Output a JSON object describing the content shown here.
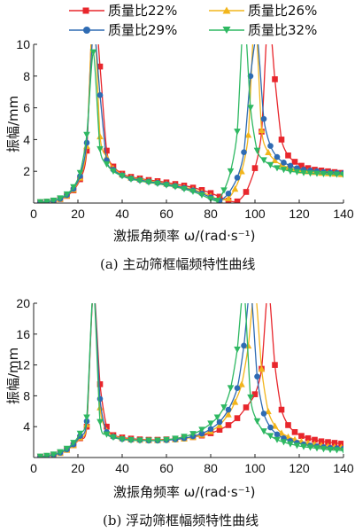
{
  "legend": {
    "title_x": "激振角频率 ω/(rad·s⁻¹)"
  },
  "chart_data": [
    {
      "type": "line",
      "caption": "(a)  主动筛框幅频特性曲线",
      "xlabel": "激振角频率 ω/(rad·s⁻¹)",
      "ylabel": "振幅/mm",
      "xlim": [
        0,
        140
      ],
      "ylim": [
        0,
        10
      ],
      "xticks": [
        "0",
        "20",
        "40",
        "60",
        "80",
        "100",
        "120",
        "140"
      ],
      "yticks": [
        "2",
        "4",
        "6",
        "8",
        "10"
      ],
      "legend_position": "top",
      "series": [
        {
          "name": "质量比22%",
          "color": "#e8262c",
          "marker": "square",
          "x": [
            3,
            6,
            9,
            12,
            15,
            18,
            21,
            24,
            27,
            30,
            33,
            36,
            40,
            44,
            48,
            52,
            56,
            60,
            64,
            68,
            72,
            76,
            80,
            84,
            88,
            92,
            96,
            100,
            103,
            106,
            109,
            112,
            115,
            118,
            121,
            124,
            127,
            130,
            133,
            136,
            139
          ],
          "y": [
            0.05,
            0.08,
            0.14,
            0.25,
            0.45,
            0.8,
            1.5,
            3.3,
            13.0,
            8.6,
            3.3,
            2.3,
            1.85,
            1.65,
            1.55,
            1.45,
            1.38,
            1.3,
            1.2,
            1.1,
            0.97,
            0.82,
            0.63,
            0.4,
            0.15,
            0.1,
            0.7,
            2.2,
            4.5,
            12.0,
            7.8,
            4.0,
            3.0,
            2.6,
            2.35,
            2.2,
            2.1,
            2.05,
            2.0,
            1.95,
            1.9
          ]
        },
        {
          "name": "质量比26%",
          "color": "#f2b51b",
          "marker": "triangle-up",
          "x": [
            3,
            6,
            9,
            12,
            15,
            18,
            21,
            24,
            27,
            30,
            33,
            36,
            40,
            44,
            48,
            52,
            56,
            60,
            64,
            68,
            72,
            76,
            80,
            84,
            88,
            91,
            94,
            97,
            100,
            103,
            106,
            109,
            112,
            115,
            118,
            121,
            124,
            127,
            130,
            133,
            136,
            139
          ],
          "y": [
            0.05,
            0.08,
            0.14,
            0.26,
            0.47,
            0.85,
            1.6,
            3.6,
            12.5,
            4.2,
            2.9,
            2.2,
            1.8,
            1.6,
            1.5,
            1.4,
            1.32,
            1.22,
            1.12,
            1.0,
            0.86,
            0.68,
            0.45,
            0.2,
            0.3,
            0.9,
            2.0,
            4.3,
            12.0,
            4.6,
            3.2,
            2.7,
            2.4,
            2.25,
            2.15,
            2.05,
            2.0,
            1.95,
            1.9,
            1.88,
            1.85,
            1.82
          ]
        },
        {
          "name": "质量比29%",
          "color": "#2e6bb3",
          "marker": "circle",
          "x": [
            3,
            6,
            9,
            12,
            15,
            18,
            21,
            24,
            27,
            30,
            33,
            36,
            40,
            44,
            48,
            52,
            56,
            60,
            64,
            68,
            72,
            76,
            80,
            84,
            88,
            92,
            95,
            98,
            101,
            104,
            107,
            110,
            113,
            116,
            119,
            122,
            125,
            128,
            131,
            134,
            137,
            140
          ],
          "y": [
            0.05,
            0.08,
            0.15,
            0.27,
            0.5,
            0.9,
            1.7,
            3.8,
            11.0,
            6.8,
            2.7,
            2.1,
            1.75,
            1.55,
            1.45,
            1.35,
            1.27,
            1.18,
            1.08,
            0.95,
            0.8,
            0.6,
            0.35,
            0.15,
            0.6,
            1.6,
            3.2,
            8.0,
            10.5,
            5.3,
            3.6,
            2.9,
            2.55,
            2.35,
            2.2,
            2.1,
            2.05,
            2.0,
            1.95,
            1.92,
            1.9,
            1.88
          ]
        },
        {
          "name": "质量比32%",
          "color": "#2eb862",
          "marker": "triangle-down",
          "x": [
            3,
            6,
            9,
            12,
            15,
            18,
            21,
            24,
            27,
            30,
            33,
            36,
            40,
            44,
            48,
            52,
            56,
            60,
            64,
            68,
            72,
            76,
            80,
            83,
            86,
            89,
            92,
            95,
            98,
            101,
            104,
            107,
            110,
            113,
            116,
            119,
            122,
            125,
            128,
            131,
            134,
            137,
            140
          ],
          "y": [
            0.06,
            0.09,
            0.16,
            0.3,
            0.55,
            1.0,
            1.9,
            4.3,
            9.5,
            3.4,
            2.45,
            2.0,
            1.7,
            1.5,
            1.4,
            1.3,
            1.22,
            1.12,
            1.02,
            0.88,
            0.72,
            0.5,
            0.25,
            0.15,
            0.8,
            2.0,
            4.5,
            12.0,
            6.0,
            3.3,
            2.7,
            2.4,
            2.2,
            2.1,
            2.0,
            1.95,
            1.9,
            1.87,
            1.85,
            1.83,
            1.82,
            1.8,
            1.78
          ]
        }
      ]
    },
    {
      "type": "line",
      "caption": "(b)  浮动筛框幅频特性曲线",
      "xlabel": "激振角频率 ω/(rad·s⁻¹)",
      "ylabel": "振幅/mm",
      "xlim": [
        0,
        140
      ],
      "ylim": [
        0,
        20
      ],
      "xticks": [
        "0",
        "20",
        "40",
        "60",
        "80",
        "100",
        "120",
        "140"
      ],
      "yticks": [
        "4",
        "8",
        "12",
        "16",
        "20"
      ],
      "series": [
        {
          "name": "质量比22%",
          "color": "#e8262c",
          "marker": "square",
          "x": [
            3,
            6,
            9,
            12,
            15,
            18,
            21,
            24,
            27,
            30,
            33,
            36,
            40,
            44,
            48,
            52,
            56,
            60,
            64,
            68,
            72,
            76,
            80,
            84,
            88,
            92,
            96,
            100,
            103,
            106,
            109,
            112,
            115,
            118,
            121,
            124,
            127,
            130,
            133,
            136,
            139
          ],
          "y": [
            0.1,
            0.2,
            0.35,
            0.6,
            1.0,
            1.6,
            2.5,
            4.0,
            22.0,
            9.5,
            4.0,
            2.9,
            2.6,
            2.45,
            2.35,
            2.3,
            2.3,
            2.35,
            2.4,
            2.5,
            2.65,
            2.85,
            3.15,
            3.6,
            4.2,
            5.1,
            6.5,
            8.2,
            11.5,
            22.0,
            12.0,
            6.2,
            4.2,
            3.3,
            2.8,
            2.5,
            2.3,
            2.1,
            2.0,
            1.9,
            1.8
          ]
        },
        {
          "name": "质量比26%",
          "color": "#f2b51b",
          "marker": "triangle-up",
          "x": [
            3,
            6,
            9,
            12,
            15,
            18,
            21,
            24,
            27,
            30,
            33,
            36,
            40,
            44,
            48,
            52,
            56,
            60,
            64,
            68,
            72,
            76,
            80,
            84,
            88,
            91,
            94,
            97,
            100,
            103,
            106,
            109,
            112,
            115,
            118,
            121,
            124,
            127,
            130,
            133,
            136,
            139
          ],
          "y": [
            0.1,
            0.2,
            0.35,
            0.6,
            1.0,
            1.6,
            2.6,
            4.3,
            22.0,
            6.5,
            3.5,
            2.8,
            2.5,
            2.35,
            2.3,
            2.25,
            2.25,
            2.3,
            2.35,
            2.45,
            2.65,
            2.95,
            3.4,
            4.2,
            5.6,
            7.2,
            9.5,
            14.5,
            22.0,
            11.5,
            6.0,
            4.1,
            3.2,
            2.7,
            2.35,
            2.1,
            1.9,
            1.75,
            1.6,
            1.5,
            1.4,
            1.35
          ]
        },
        {
          "name": "质量比29%",
          "color": "#2e6bb3",
          "marker": "circle",
          "x": [
            3,
            6,
            9,
            12,
            15,
            18,
            21,
            24,
            27,
            30,
            33,
            36,
            40,
            44,
            48,
            52,
            56,
            60,
            64,
            68,
            72,
            76,
            80,
            84,
            88,
            92,
            95,
            98,
            101,
            104,
            107,
            110,
            113,
            116,
            119,
            122,
            125,
            128,
            131,
            134,
            137,
            140
          ],
          "y": [
            0.1,
            0.2,
            0.36,
            0.62,
            1.05,
            1.7,
            2.8,
            4.7,
            22.0,
            7.6,
            3.3,
            2.7,
            2.4,
            2.3,
            2.25,
            2.2,
            2.2,
            2.25,
            2.35,
            2.5,
            2.75,
            3.1,
            3.7,
            4.6,
            6.2,
            9.0,
            14.5,
            22.0,
            10.5,
            5.7,
            3.9,
            3.0,
            2.5,
            2.15,
            1.9,
            1.7,
            1.55,
            1.45,
            1.35,
            1.25,
            1.2,
            1.15
          ]
        },
        {
          "name": "质量比32%",
          "color": "#2eb862",
          "marker": "triangle-down",
          "x": [
            3,
            6,
            9,
            12,
            15,
            18,
            21,
            24,
            27,
            30,
            33,
            36,
            40,
            44,
            48,
            52,
            56,
            60,
            64,
            68,
            72,
            76,
            80,
            83,
            86,
            89,
            92,
            95,
            98,
            101,
            104,
            107,
            110,
            113,
            116,
            119,
            122,
            125,
            128,
            131,
            134,
            137,
            140
          ],
          "y": [
            0.12,
            0.22,
            0.4,
            0.7,
            1.15,
            1.9,
            3.1,
            5.2,
            22.0,
            4.6,
            3.0,
            2.6,
            2.35,
            2.25,
            2.2,
            2.2,
            2.2,
            2.3,
            2.45,
            2.7,
            3.05,
            3.6,
            4.4,
            5.2,
            6.5,
            9.0,
            14.0,
            22.0,
            7.8,
            4.7,
            3.4,
            2.8,
            2.3,
            2.0,
            1.75,
            1.55,
            1.4,
            1.3,
            1.2,
            1.1,
            1.0,
            0.95,
            0.9
          ]
        }
      ]
    }
  ]
}
